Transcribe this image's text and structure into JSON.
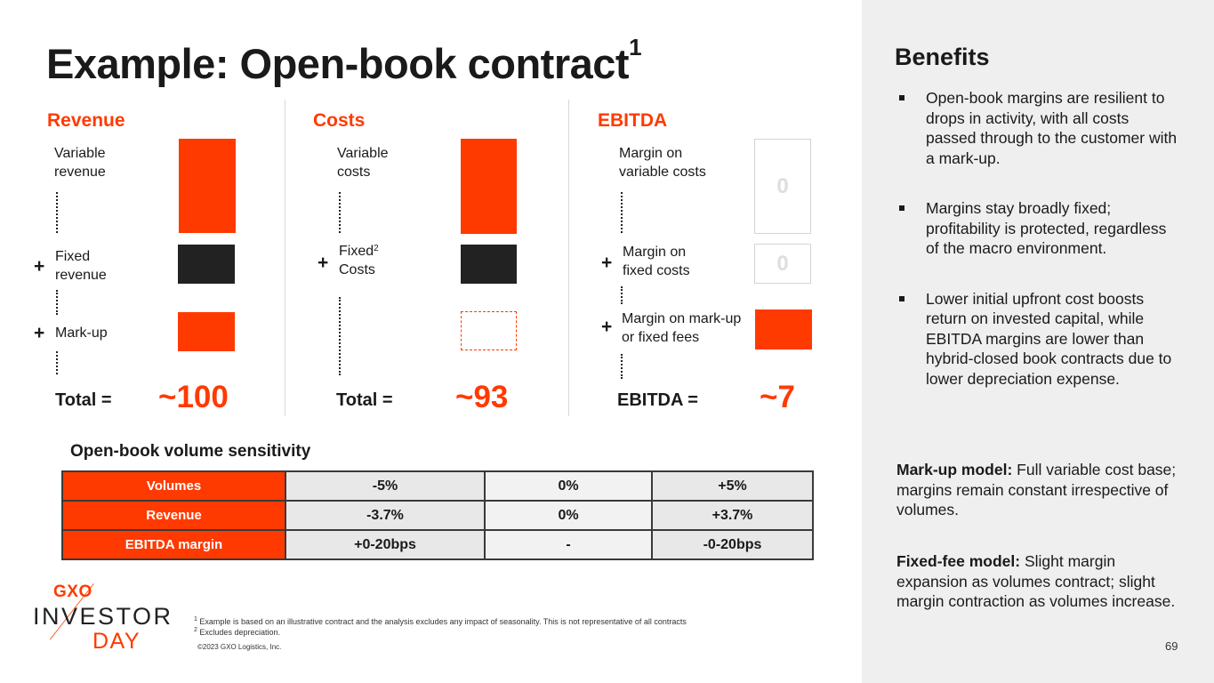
{
  "title": "Example: Open-book contract",
  "title_sup": "1",
  "revenue": {
    "heading": "Revenue",
    "variable_label": "Variable revenue",
    "fixed_label": "Fixed revenue",
    "markup_label": "Mark-up",
    "total_label": "Total =",
    "total_value": "~100"
  },
  "costs": {
    "heading": "Costs",
    "variable_label": "Variable costs",
    "fixed_label": "Fixed",
    "fixed_sup": "2",
    "fixed_label2": "Costs",
    "total_label": "Total =",
    "total_value": "~93"
  },
  "ebitda": {
    "heading": "EBITDA",
    "var_margin_label": "Margin on variable costs",
    "var_margin_value": "0",
    "fixed_margin_label": "Margin on fixed costs",
    "fixed_margin_value": "0",
    "markup_margin_label": "Margin on mark-up or fixed fees",
    "total_label": "EBITDA =",
    "total_value": "~7"
  },
  "plus_sign": "+",
  "sensitivity": {
    "title": "Open-book volume sensitivity",
    "rows": [
      {
        "label": "Volumes",
        "cells": [
          "-5%",
          "0%",
          "+5%"
        ]
      },
      {
        "label": "Revenue",
        "cells": [
          "-3.7%",
          "0%",
          "+3.7%"
        ]
      },
      {
        "label": "EBITDA margin",
        "cells": [
          "+0-20bps",
          "-",
          "-0-20bps"
        ]
      }
    ]
  },
  "logo": {
    "brand": "GXO",
    "line1": "INVESTOR",
    "line2": "DAY"
  },
  "footnotes": {
    "fn1_num": "1",
    "fn1": "Example is based on an illustrative contract and the analysis excludes any impact of seasonality. This is not representative of all contracts",
    "fn2_num": "2",
    "fn2": "Excludes depreciation.",
    "copyright": "©2023 GXO Logistics, Inc."
  },
  "benefits": {
    "title": "Benefits",
    "items": [
      "Open-book margins are resilient to drops in activity, with all costs passed through to the customer with a mark-up.",
      "Margins stay broadly fixed; profitability is protected, regardless of the macro environment.",
      "Lower initial upfront cost boosts return on invested capital, while EBITDA margins are lower than hybrid-closed book contracts due to lower depreciation expense."
    ],
    "markup_model_label": "Mark-up model:",
    "markup_model_text": "Full variable cost base; margins remain constant irrespective of volumes.",
    "fixed_fee_label": "Fixed-fee model:",
    "fixed_fee_text": "Slight margin expansion as volumes contract; slight margin contraction as volumes increase."
  },
  "page_number": "69",
  "colors": {
    "accent": "#ff3a00",
    "dark": "#222222",
    "panel": "#efefef"
  }
}
